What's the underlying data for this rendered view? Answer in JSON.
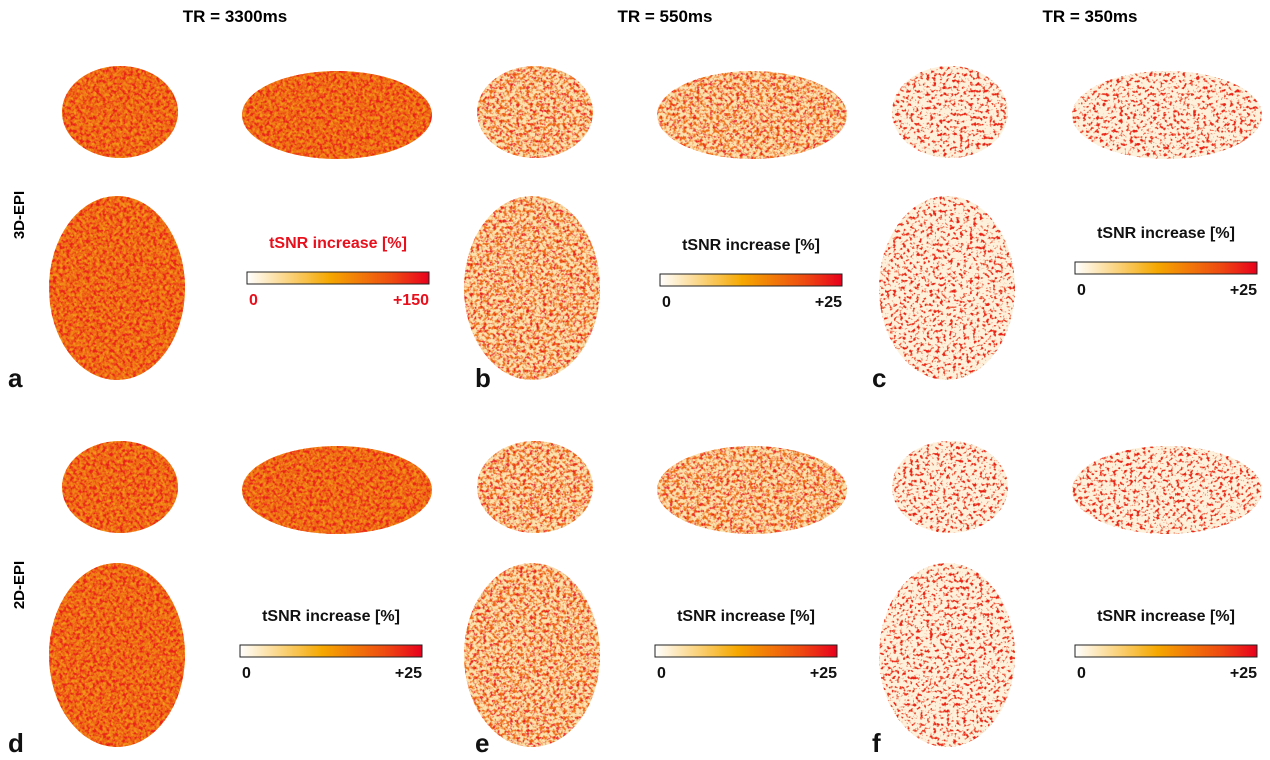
{
  "columns": [
    "TR = 3300ms",
    "TR = 550ms",
    "TR = 350ms"
  ],
  "rows": [
    "3D-EPI",
    "2D-EPI"
  ],
  "panels": [
    {
      "letter": "a",
      "colorbar": {
        "title": "tSNR increase [%]",
        "min": "0",
        "max": "+150"
      }
    },
    {
      "letter": "b",
      "colorbar": {
        "title": "tSNR increase [%]",
        "min": "0",
        "max": "+25"
      }
    },
    {
      "letter": "c",
      "colorbar": {
        "title": "tSNR increase [%]",
        "min": "0",
        "max": "+25"
      }
    },
    {
      "letter": "d",
      "colorbar": {
        "title": "tSNR increase [%]",
        "min": "0",
        "max": "+25"
      }
    },
    {
      "letter": "e",
      "colorbar": {
        "title": "tSNR increase [%]",
        "min": "0",
        "max": "+25"
      }
    },
    {
      "letter": "f",
      "colorbar": {
        "title": "tSNR increase [%]",
        "min": "0",
        "max": "+25"
      }
    }
  ]
}
